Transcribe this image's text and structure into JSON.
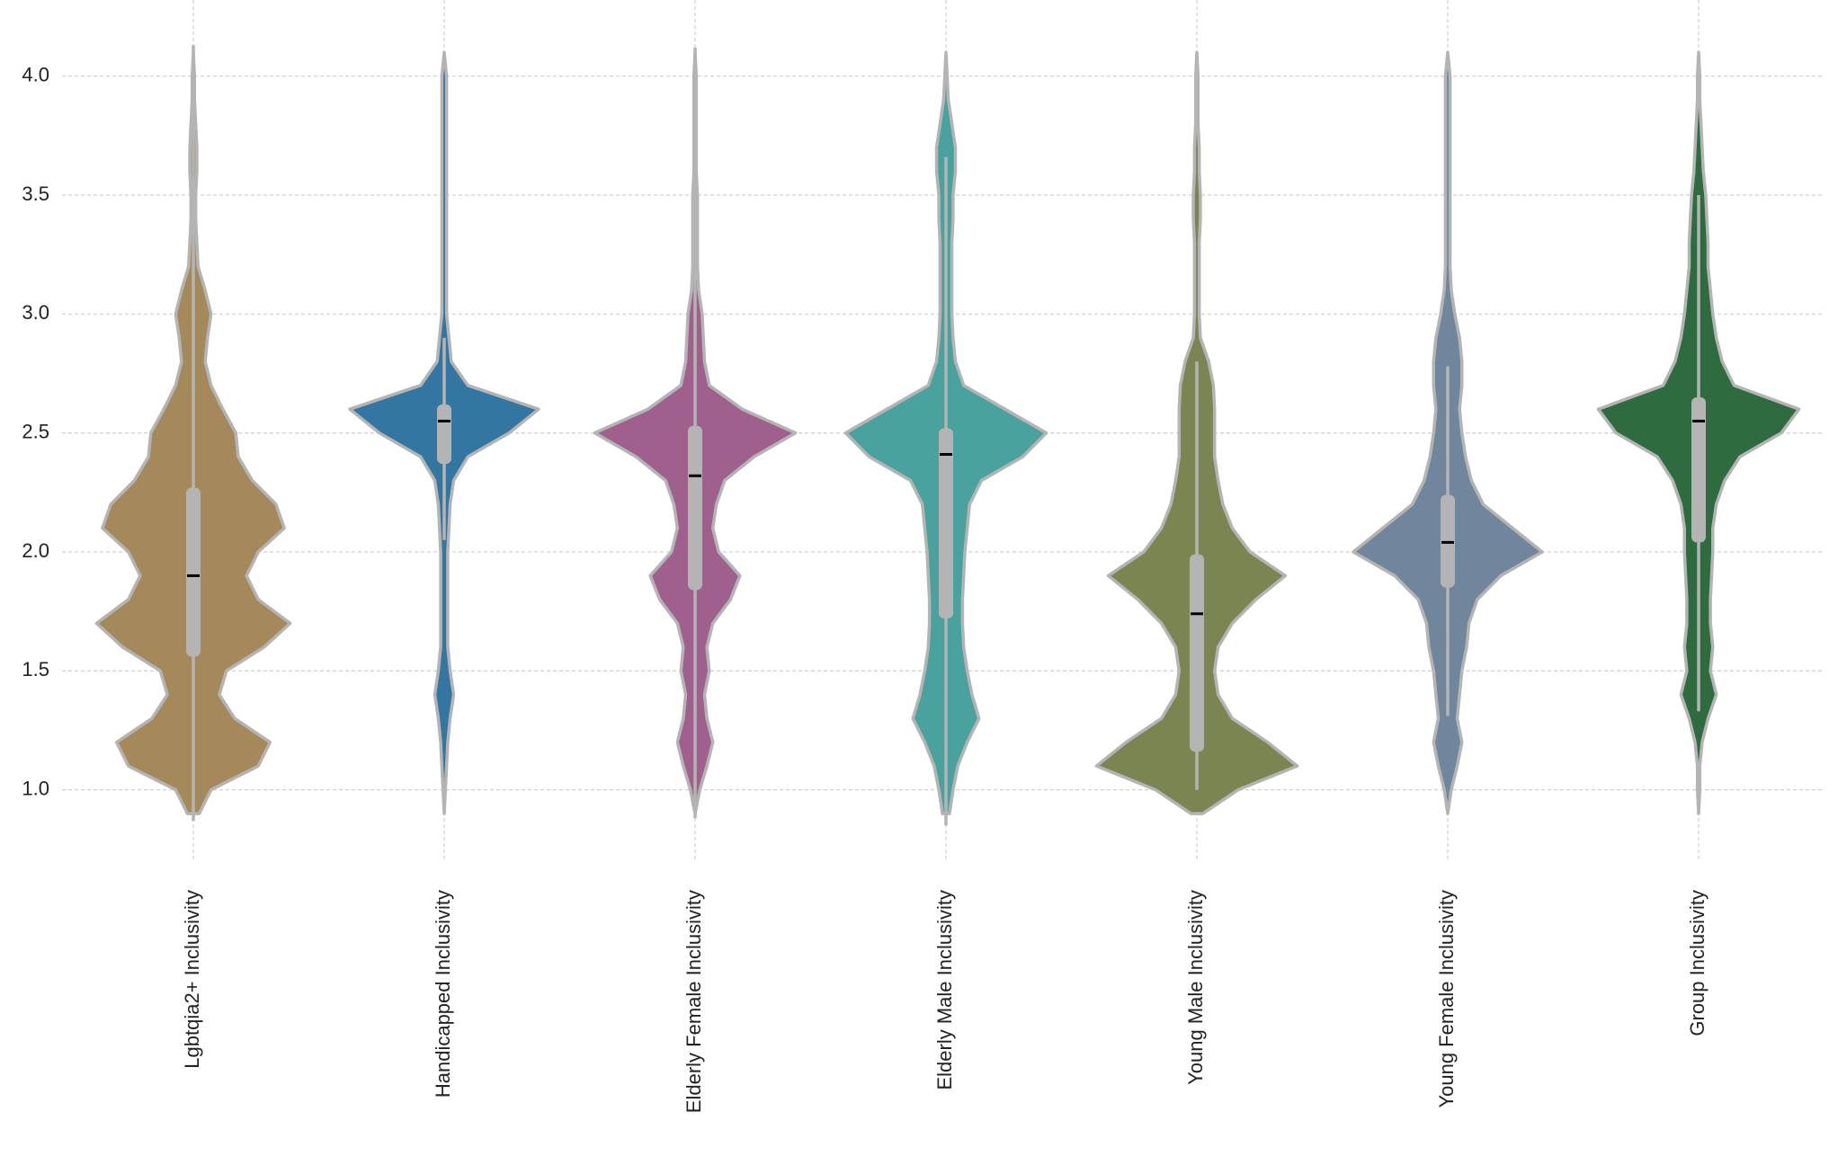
{
  "chart_data": {
    "type": "violin",
    "categories": [
      "Lgbtqia2+ Inclusivity",
      "Handicapped Inclusivity",
      "Elderly Female Inclusivity",
      "Elderly Male Inclusivity",
      "Young Male Inclusivity",
      "Young Female Inclusivity",
      "Group Inclusivity"
    ],
    "ylim": [
      0.7,
      4.32
    ],
    "yticks": [
      {
        "value": 1,
        "label": "1.0"
      },
      1.5,
      {
        "value": 2,
        "label": "2.0"
      },
      2.5,
      {
        "value": 3,
        "label": "3.0"
      },
      3.5,
      {
        "value": 4,
        "label": "4.0"
      }
    ],
    "grid": true,
    "density_y": [
      0.9,
      1.0,
      1.1,
      1.2,
      1.3,
      1.4,
      1.5,
      1.6,
      1.7,
      1.8,
      1.9,
      2.0,
      2.1,
      2.2,
      2.3,
      2.4,
      2.5,
      2.6,
      2.7,
      2.8,
      2.9,
      3.0,
      3.1,
      3.2,
      3.3,
      3.4,
      3.5,
      3.6,
      3.7,
      3.8,
      3.9,
      4.0,
      4.1
    ],
    "series": [
      {
        "color": "#a5895a",
        "q1": 1.56,
        "median": 1.9,
        "q3": 2.27,
        "whisker_low": 0.87,
        "whisker_high": 4.13,
        "density": [
          5,
          15,
          55,
          65,
          35,
          22,
          28,
          60,
          82,
          55,
          45,
          55,
          77,
          70,
          50,
          38,
          36,
          25,
          15,
          10,
          12,
          15,
          10,
          4,
          3,
          2,
          2,
          3,
          3,
          2,
          1,
          1,
          0
        ]
      },
      {
        "color": "#3276a1",
        "q1": 2.37,
        "median": 2.55,
        "q3": 2.62,
        "whisker_low": 2.05,
        "whisker_high": 2.9,
        "density": [
          0,
          1,
          2,
          3,
          5,
          8,
          5,
          3,
          3,
          3,
          3,
          3,
          4,
          5,
          8,
          20,
          55,
          80,
          20,
          6,
          4,
          2,
          2,
          2,
          2,
          2,
          2,
          2,
          2,
          2,
          2,
          2,
          0
        ]
      },
      {
        "color": "#a0608e",
        "q1": 1.84,
        "median": 2.32,
        "q3": 2.53,
        "whisker_low": 0.88,
        "whisker_high": 4.12,
        "density": [
          0,
          4,
          10,
          15,
          10,
          8,
          12,
          10,
          15,
          30,
          38,
          20,
          15,
          18,
          25,
          50,
          85,
          40,
          12,
          8,
          7,
          6,
          3,
          2,
          2,
          2,
          2,
          1,
          1,
          1,
          1,
          1,
          0
        ]
      },
      {
        "color": "#49a29e",
        "q1": 1.72,
        "median": 2.41,
        "q3": 2.52,
        "whisker_low": 0.85,
        "whisker_high": 3.66,
        "density": [
          3,
          6,
          10,
          18,
          28,
          22,
          18,
          15,
          14,
          14,
          15,
          16,
          18,
          20,
          30,
          65,
          85,
          50,
          15,
          8,
          6,
          5,
          5,
          5,
          5,
          6,
          6,
          8,
          8,
          5,
          2,
          1,
          0
        ]
      },
      {
        "color": "#7a8552",
        "q1": 1.16,
        "median": 1.74,
        "q3": 1.99,
        "whisker_low": 1.0,
        "whisker_high": 2.8,
        "density": [
          5,
          35,
          85,
          60,
          30,
          18,
          15,
          18,
          30,
          50,
          75,
          45,
          30,
          22,
          18,
          15,
          15,
          15,
          14,
          10,
          3,
          2,
          2,
          2,
          2,
          3,
          3,
          2,
          2,
          1,
          1,
          1,
          0
        ]
      },
      {
        "color": "#70869c",
        "q1": 1.85,
        "median": 2.04,
        "q3": 2.24,
        "whisker_low": 1.31,
        "whisker_high": 2.78,
        "density": [
          0,
          3,
          8,
          12,
          8,
          10,
          12,
          16,
          18,
          25,
          45,
          80,
          55,
          30,
          20,
          15,
          12,
          10,
          12,
          12,
          10,
          6,
          3,
          2,
          2,
          2,
          2,
          2,
          2,
          2,
          2,
          2,
          0
        ]
      },
      {
        "color": "#2e6b3e",
        "q1": 2.04,
        "median": 2.55,
        "q3": 2.65,
        "whisker_low": 1.33,
        "whisker_high": 3.5,
        "density": [
          0,
          1,
          1,
          3,
          8,
          15,
          10,
          12,
          10,
          10,
          11,
          12,
          12,
          15,
          22,
          35,
          70,
          85,
          30,
          20,
          15,
          12,
          10,
          8,
          8,
          7,
          6,
          4,
          3,
          2,
          1,
          1,
          0
        ]
      }
    ]
  }
}
